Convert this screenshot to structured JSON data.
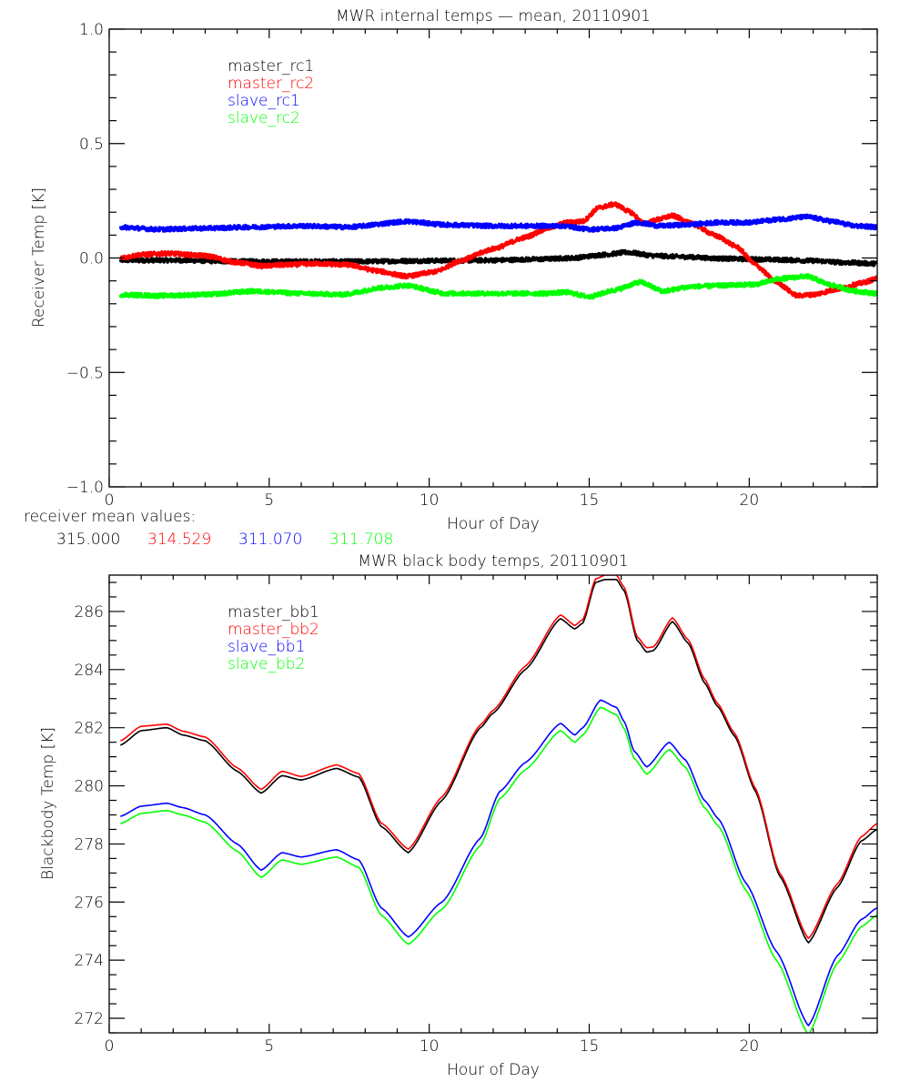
{
  "chart_data": [
    {
      "id": "receiver",
      "type": "line",
      "title": "MWR internal temps — mean, 20110901",
      "xlabel": "Hour of Day",
      "ylabel": "Receiver Temp [K]",
      "xlim": [
        0,
        24
      ],
      "ylim": [
        -1.0,
        1.0
      ],
      "xticks": [
        0,
        5,
        10,
        15,
        20
      ],
      "xtick_labels": [
        "0",
        "5",
        "10",
        "15",
        "20"
      ],
      "x_minor_step": 1,
      "yticks": [
        -1.0,
        -0.5,
        0.0,
        0.5,
        1.0
      ],
      "ytick_labels": [
        "−1.0",
        "−0.5",
        "0.0",
        "0.5",
        "1.0"
      ],
      "y_minor_step": 0.1,
      "grid": false,
      "legend_position": "top-left",
      "noisy": true,
      "series": [
        {
          "name": "master_rc1",
          "color": "#000000",
          "x": [
            0.35,
            2,
            4,
            6,
            8,
            10,
            12,
            13.5,
            14.5,
            15.5,
            16.2,
            17,
            18,
            19,
            20,
            21,
            22,
            23,
            24
          ],
          "y": [
            -0.01,
            -0.01,
            -0.015,
            -0.015,
            -0.015,
            -0.012,
            -0.01,
            -0.005,
            0.0,
            0.015,
            0.025,
            0.01,
            0.005,
            -0.002,
            -0.005,
            -0.008,
            -0.012,
            -0.02,
            -0.025
          ]
        },
        {
          "name": "master_rc2",
          "color": "#ff0000",
          "x": [
            0.35,
            1.0,
            1.8,
            3.0,
            4.0,
            4.8,
            5.5,
            6.5,
            7.5,
            8.3,
            9.3,
            10.2,
            11.0,
            12.0,
            13.0,
            13.7,
            14.3,
            14.8,
            15.3,
            15.8,
            16.3,
            16.7,
            17.2,
            17.6,
            18.2,
            19.0,
            19.6,
            20.2,
            20.8,
            21.5,
            22.0,
            22.8,
            23.5,
            24.0
          ],
          "y": [
            0.0,
            0.015,
            0.02,
            0.01,
            -0.02,
            -0.035,
            -0.03,
            -0.025,
            -0.03,
            -0.055,
            -0.08,
            -0.06,
            -0.01,
            0.04,
            0.09,
            0.13,
            0.155,
            0.16,
            0.22,
            0.235,
            0.2,
            0.15,
            0.17,
            0.185,
            0.15,
            0.095,
            0.05,
            -0.03,
            -0.1,
            -0.165,
            -0.16,
            -0.135,
            -0.11,
            -0.09
          ]
        },
        {
          "name": "slave_rc1",
          "color": "#0000ff",
          "x": [
            0.35,
            1.5,
            3,
            4.5,
            6,
            7.5,
            9.3,
            10.5,
            12,
            13.5,
            14.2,
            15.0,
            15.8,
            16.5,
            17.2,
            18.0,
            19.0,
            20.0,
            21.0,
            21.8,
            22.6,
            23.3,
            24.0
          ],
          "y": [
            0.135,
            0.125,
            0.13,
            0.135,
            0.14,
            0.135,
            0.16,
            0.145,
            0.14,
            0.14,
            0.14,
            0.125,
            0.13,
            0.155,
            0.14,
            0.145,
            0.155,
            0.155,
            0.17,
            0.18,
            0.16,
            0.14,
            0.135
          ]
        },
        {
          "name": "slave_rc2",
          "color": "#00ff00",
          "x": [
            0.35,
            1.5,
            3,
            4.5,
            6,
            7.3,
            8.5,
            9.3,
            10.5,
            12,
            13.5,
            14.3,
            15.0,
            15.8,
            16.6,
            17.3,
            18.2,
            19.2,
            20.2,
            21.0,
            21.8,
            22.6,
            23.3,
            24.0
          ],
          "y": [
            -0.16,
            -0.165,
            -0.16,
            -0.145,
            -0.155,
            -0.16,
            -0.13,
            -0.12,
            -0.155,
            -0.155,
            -0.155,
            -0.15,
            -0.17,
            -0.14,
            -0.105,
            -0.145,
            -0.125,
            -0.12,
            -0.115,
            -0.09,
            -0.08,
            -0.12,
            -0.145,
            -0.155
          ]
        }
      ],
      "footer": {
        "label": "receiver mean values:",
        "values": [
          {
            "text": "315.000",
            "color": "#000000"
          },
          {
            "text": "314.529",
            "color": "#ff0000"
          },
          {
            "text": "311.070",
            "color": "#0000ff"
          },
          {
            "text": "311.708",
            "color": "#00ff00"
          }
        ]
      }
    },
    {
      "id": "blackbody",
      "type": "line",
      "title": "MWR black body temps, 20110901",
      "xlabel": "Hour of Day",
      "ylabel": "Blackbody Temp [K]",
      "xlim": [
        0,
        24
      ],
      "ylim": [
        271.5,
        287.25
      ],
      "xticks": [
        0,
        5,
        10,
        15,
        20
      ],
      "xtick_labels": [
        "0",
        "5",
        "10",
        "15",
        "20"
      ],
      "x_minor_step": 1,
      "yticks": [
        272,
        274,
        276,
        278,
        280,
        282,
        284,
        286
      ],
      "ytick_labels": [
        "272",
        "274",
        "276",
        "278",
        "280",
        "282",
        "284",
        "286"
      ],
      "y_minor_step": 0.5,
      "grid": false,
      "legend_position": "top-left",
      "noisy": false,
      "series": [
        {
          "name": "master_bb1",
          "color": "#000000",
          "x": [
            0.35,
            1.0,
            1.8,
            2.3,
            3.0,
            4.0,
            4.75,
            5.4,
            6.0,
            7.1,
            7.8,
            8.5,
            9.35,
            10.4,
            11.6,
            12.0,
            13.0,
            14.1,
            14.55,
            14.8,
            15.2,
            15.5,
            15.85,
            16.1,
            16.5,
            16.8,
            17.0,
            17.6,
            18.1,
            18.6,
            19.0,
            19.55,
            20.2,
            20.95,
            21.85,
            22.75,
            23.5,
            24.0
          ],
          "y": [
            281.4,
            281.9,
            282.0,
            281.75,
            281.55,
            280.5,
            279.75,
            280.35,
            280.2,
            280.6,
            280.3,
            278.6,
            277.7,
            279.5,
            282.0,
            282.5,
            284.0,
            285.75,
            285.4,
            285.6,
            287.0,
            287.1,
            287.1,
            286.7,
            285.0,
            284.6,
            284.65,
            285.65,
            284.9,
            283.55,
            282.75,
            281.7,
            279.8,
            276.9,
            274.6,
            276.5,
            278.1,
            278.5
          ]
        },
        {
          "name": "master_bb2",
          "color": "#ff0000",
          "x": [
            0.35,
            1.0,
            1.8,
            2.3,
            3.0,
            4.0,
            4.75,
            5.4,
            6.0,
            7.1,
            7.8,
            8.5,
            9.35,
            10.4,
            11.6,
            12.0,
            13.0,
            14.1,
            14.55,
            14.8,
            15.2,
            15.5,
            15.85,
            16.1,
            16.5,
            16.8,
            17.0,
            17.6,
            18.1,
            18.6,
            19.0,
            19.55,
            20.2,
            20.95,
            21.85,
            22.75,
            23.5,
            24.0
          ],
          "y": [
            281.55,
            282.05,
            282.12,
            281.88,
            281.68,
            280.62,
            279.88,
            280.5,
            280.32,
            280.72,
            280.42,
            278.72,
            277.82,
            279.62,
            282.1,
            282.6,
            284.12,
            285.88,
            285.52,
            285.72,
            287.12,
            287.25,
            287.25,
            286.82,
            285.12,
            284.75,
            284.78,
            285.78,
            285.02,
            283.68,
            282.85,
            281.8,
            279.9,
            277.0,
            274.75,
            276.62,
            278.25,
            278.7
          ]
        },
        {
          "name": "slave_bb1",
          "color": "#0000ff",
          "x": [
            0.35,
            1.0,
            1.8,
            2.3,
            3.0,
            4.0,
            4.75,
            5.4,
            6.0,
            7.1,
            7.8,
            8.5,
            9.35,
            10.4,
            11.6,
            12.2,
            13.0,
            14.1,
            14.55,
            14.8,
            15.35,
            15.85,
            16.1,
            16.4,
            16.8,
            17.5,
            18.0,
            18.6,
            19.05,
            19.9,
            20.85,
            21.85,
            22.75,
            23.5,
            24.0
          ],
          "y": [
            278.95,
            279.3,
            279.4,
            279.25,
            279.0,
            278.0,
            277.1,
            277.7,
            277.55,
            277.8,
            277.45,
            275.8,
            274.8,
            276.0,
            278.2,
            279.8,
            280.8,
            282.15,
            281.75,
            282.0,
            282.95,
            282.7,
            282.2,
            281.2,
            280.65,
            281.5,
            280.9,
            279.5,
            278.85,
            276.65,
            274.3,
            271.75,
            274.15,
            275.4,
            275.8
          ]
        },
        {
          "name": "slave_bb2",
          "color": "#00ff00",
          "x": [
            0.35,
            1.0,
            1.8,
            2.3,
            3.0,
            4.0,
            4.75,
            5.4,
            6.0,
            7.1,
            7.8,
            8.5,
            9.35,
            10.4,
            11.6,
            12.2,
            13.0,
            14.1,
            14.55,
            14.8,
            15.35,
            15.85,
            16.1,
            16.4,
            16.8,
            17.5,
            18.0,
            18.6,
            19.05,
            19.9,
            20.85,
            21.85,
            22.75,
            23.5,
            24.0
          ],
          "y": [
            278.7,
            279.05,
            279.15,
            279.0,
            278.75,
            277.75,
            276.85,
            277.45,
            277.3,
            277.55,
            277.2,
            275.55,
            274.55,
            275.75,
            277.95,
            279.55,
            280.55,
            281.9,
            281.5,
            281.75,
            282.7,
            282.45,
            281.95,
            280.95,
            280.4,
            281.25,
            280.65,
            279.25,
            278.6,
            276.4,
            274.0,
            271.45,
            273.9,
            275.15,
            275.55
          ]
        }
      ]
    }
  ]
}
